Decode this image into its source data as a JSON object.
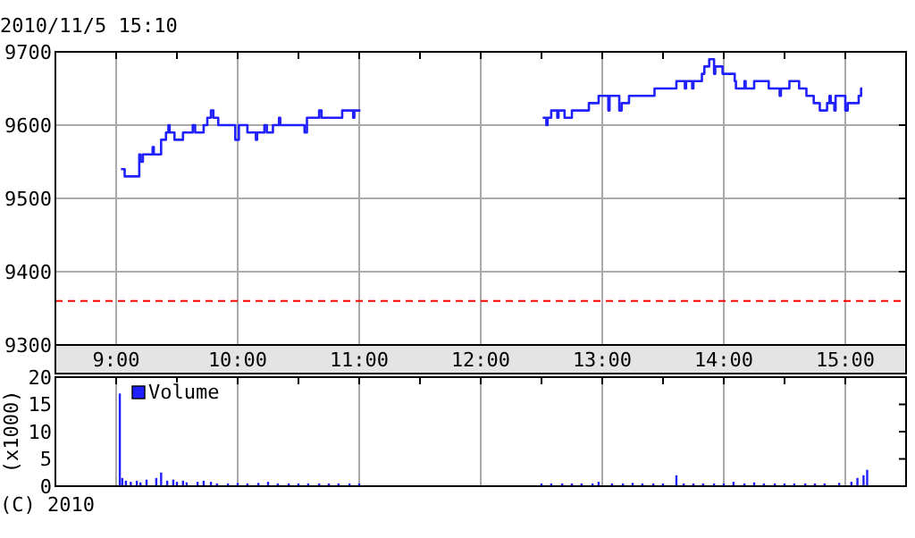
{
  "chart_data": [
    {
      "type": "step",
      "title": "2010/11/5 15:10",
      "annotations": [
        "(C) 2010"
      ],
      "x": [
        9.04,
        9.07,
        9.19,
        9.2,
        9.22,
        9.3,
        9.31,
        9.37,
        9.41,
        9.43,
        9.44,
        9.48,
        9.55,
        9.63,
        9.65,
        9.72,
        9.75,
        9.78,
        9.8,
        9.84,
        9.98,
        10.01,
        10.08,
        10.15,
        10.16,
        10.22,
        10.24,
        10.29,
        10.34,
        10.35,
        10.55,
        10.57,
        10.67,
        10.69,
        10.86,
        10.95,
        10.96,
        11.01,
        12,
        12.51,
        12.54,
        12.55,
        12.58,
        12.63,
        12.64,
        12.69,
        12.75,
        12.89,
        12.97,
        13.05,
        13.06,
        13.14,
        13.16,
        13.22,
        13.43,
        13.61,
        13.68,
        13.69,
        13.74,
        13.75,
        13.82,
        13.84,
        13.88,
        13.92,
        13.93,
        13.99,
        14.09,
        14.1,
        14.17,
        14.18,
        14.25,
        14.37,
        14.46,
        14.47,
        14.54,
        14.62,
        14.68,
        14.74,
        14.79,
        14.85,
        14.87,
        14.88,
        14.91,
        14.92,
        15.0,
        15.02,
        15.11,
        15.13,
        15.14
      ],
      "series": [
        {
          "color": "#2020ff",
          "values": [
            9540,
            9530,
            9560,
            9550,
            9560,
            9570,
            9560,
            9580,
            9590,
            9600,
            9590,
            9580,
            9590,
            9600,
            9590,
            9600,
            9610,
            9620,
            9610,
            9600,
            9580,
            9600,
            9590,
            9580,
            9590,
            9600,
            9590,
            9600,
            9610,
            9600,
            9590,
            9610,
            9620,
            9610,
            9620,
            9610,
            9620,
            9620,
            null,
            9610,
            9600,
            9610,
            9620,
            9610,
            9620,
            9610,
            9620,
            9630,
            9640,
            9620,
            9640,
            9620,
            9630,
            9640,
            9650,
            9660,
            9650,
            9660,
            9650,
            9660,
            9670,
            9680,
            9690,
            9670,
            9680,
            9670,
            9660,
            9650,
            9660,
            9650,
            9660,
            9650,
            9640,
            9650,
            9660,
            9650,
            9640,
            9630,
            9620,
            9630,
            9640,
            9630,
            9620,
            9640,
            9620,
            9630,
            9640,
            9650,
            9650
          ]
        }
      ],
      "xlim": [
        8.5,
        15.5
      ],
      "xticks": [
        {
          "value": 9,
          "label": "9:00"
        },
        {
          "value": 9.5,
          "label": null
        },
        {
          "value": 10,
          "label": "10:00"
        },
        {
          "value": 10.5,
          "label": null
        },
        {
          "value": 11,
          "label": "11:00"
        },
        {
          "value": 11.5,
          "label": null
        },
        {
          "value": 12,
          "label": "12:00"
        },
        {
          "value": 12.5,
          "label": null
        },
        {
          "value": 13,
          "label": "13:00"
        },
        {
          "value": 13.5,
          "label": null
        },
        {
          "value": 14,
          "label": "14:00"
        },
        {
          "value": 14.5,
          "label": null
        },
        {
          "value": 15,
          "label": "15:00"
        }
      ],
      "ylim": [
        9300,
        9700
      ],
      "yticks": [
        9300,
        9400,
        9500,
        9600,
        9700
      ],
      "grid": true,
      "ref_lines": [
        {
          "axis": "y",
          "value": 9360,
          "color": "#ff0000",
          "line_style": "dashed"
        }
      ]
    },
    {
      "type": "bar",
      "ylabel": "(x1000)",
      "x": [
        9.03,
        9.05,
        9.08,
        9.12,
        9.17,
        9.2,
        9.25,
        9.33,
        9.37,
        9.42,
        9.47,
        9.5,
        9.55,
        9.58,
        9.67,
        9.72,
        9.78,
        9.83,
        9.92,
        10.0,
        10.08,
        10.17,
        10.25,
        10.33,
        10.42,
        10.5,
        10.58,
        10.67,
        10.75,
        10.83,
        10.92,
        11.0,
        12.5,
        12.58,
        12.67,
        12.75,
        12.83,
        12.92,
        12.97,
        13.08,
        13.17,
        13.25,
        13.33,
        13.42,
        13.5,
        13.61,
        13.67,
        13.75,
        13.83,
        13.92,
        14.0,
        14.08,
        14.17,
        14.25,
        14.33,
        14.42,
        14.5,
        14.58,
        14.67,
        14.75,
        14.83,
        14.95,
        15.05,
        15.1,
        15.15,
        15.18
      ],
      "series": [
        {
          "name": "Volume",
          "color": "#2020ff",
          "values": [
            17,
            1.5,
            1,
            0.8,
            1,
            0.7,
            1.2,
            1.5,
            2.5,
            1,
            1.2,
            0.8,
            1,
            0.7,
            0.8,
            1,
            0.8,
            0.5,
            0.5,
            0.6,
            0.5,
            0.6,
            0.8,
            0.5,
            0.5,
            0.5,
            0.5,
            0.5,
            0.5,
            0.5,
            0.5,
            0.5,
            0.5,
            0.5,
            0.5,
            0.5,
            0.5,
            0.5,
            0.8,
            0.5,
            0.5,
            0.6,
            0.5,
            0.5,
            0.5,
            2,
            0.5,
            0.5,
            0.5,
            0.5,
            0.5,
            0.8,
            0.5,
            0.7,
            0.5,
            0.5,
            0.5,
            0.5,
            0.5,
            0.5,
            0.5,
            0.6,
            0.8,
            1.5,
            2,
            3
          ]
        }
      ],
      "xlim": [
        8.5,
        15.5
      ],
      "ylim": [
        0,
        20
      ],
      "yticks": [
        0,
        5,
        10,
        15,
        20
      ],
      "grid": "x",
      "legend": "top left",
      "tick_labels": "y"
    }
  ]
}
